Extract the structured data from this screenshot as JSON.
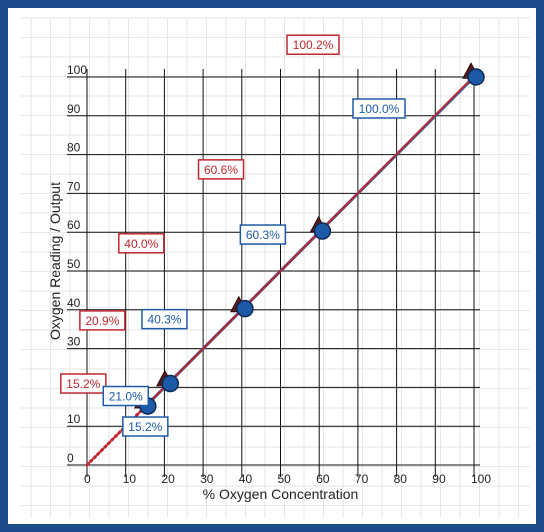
{
  "chart_data": {
    "type": "scatter",
    "title": "",
    "xlabel": "% Oxygen Concentration",
    "ylabel": "Oxygen Reading / Output",
    "xlim": [
      0,
      100
    ],
    "ylim": [
      0,
      100
    ],
    "x_ticks": [
      0,
      10,
      20,
      30,
      40,
      50,
      60,
      70,
      80,
      90,
      100
    ],
    "y_ticks": [
      0,
      10,
      20,
      30,
      40,
      50,
      60,
      70,
      80,
      90,
      100
    ],
    "grid": true,
    "series": [
      {
        "color": "#c0272d",
        "marker": "triangle",
        "points": [
          {
            "x": 15.2,
            "y": 15.2,
            "label": "15.2%"
          },
          {
            "x": 20.9,
            "y": 20.9,
            "label": "20.9%"
          },
          {
            "x": 40.0,
            "y": 40.0,
            "label": "40.0%"
          },
          {
            "x": 60.6,
            "y": 60.6,
            "label": "60.6%"
          },
          {
            "x": 100.0,
            "y": 100.2,
            "label": "100.2%"
          }
        ]
      },
      {
        "color": "#1c5aa8",
        "marker": "circle",
        "points": [
          {
            "x": 15.2,
            "y": 15.2,
            "label": "15.2%"
          },
          {
            "x": 21.0,
            "y": 21.0,
            "label": "21.0%"
          },
          {
            "x": 40.3,
            "y": 40.3,
            "label": "40.3%"
          },
          {
            "x": 60.3,
            "y": 60.3,
            "label": "60.3%"
          },
          {
            "x": 100.0,
            "y": 100.0,
            "label": "100.0%"
          }
        ]
      }
    ],
    "extrapolation": {
      "from": [
        0,
        0
      ],
      "to": [
        15.2,
        15.2
      ],
      "style": "dotted",
      "color": "#c0272d"
    }
  }
}
